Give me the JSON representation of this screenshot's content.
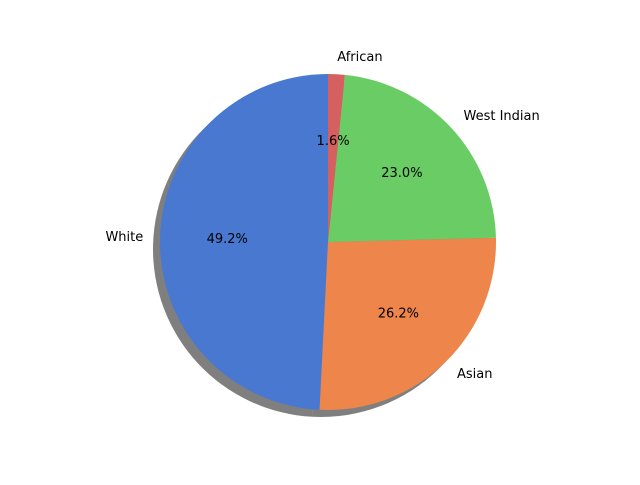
{
  "chart_data": {
    "type": "pie",
    "title": "",
    "start_angle_deg": 90,
    "direction": "counterclockwise",
    "shadow": true,
    "slices": [
      {
        "label": "White",
        "value": 49.2,
        "pct_label": "49.2%",
        "color": "#4878d0"
      },
      {
        "label": "Asian",
        "value": 26.2,
        "pct_label": "26.2%",
        "color": "#ee854a"
      },
      {
        "label": "West Indian",
        "value": 23.0,
        "pct_label": "23.0%",
        "color": "#6acc64"
      },
      {
        "label": "African",
        "value": 1.6,
        "pct_label": "1.6%",
        "color": "#d65f5f"
      }
    ]
  }
}
